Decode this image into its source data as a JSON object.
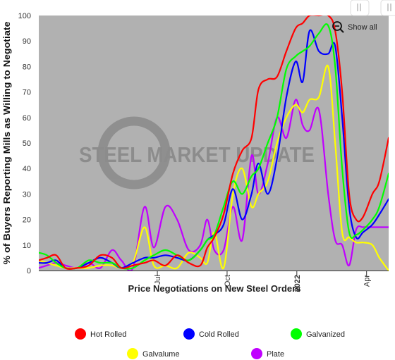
{
  "chart_data": {
    "type": "line",
    "title": "",
    "xlabel": "Price Negotiations on New Steel Orders",
    "ylabel": "% of Buyers Reporting Mills as Willing to Negotiate",
    "ylim": [
      0,
      100
    ],
    "y_ticks": [
      0,
      10,
      20,
      30,
      40,
      50,
      60,
      70,
      80,
      90,
      100
    ],
    "x_ticks": [
      {
        "label": "Jul",
        "pos": 11.25,
        "bold": false,
        "rotated": true
      },
      {
        "label": "Oct",
        "pos": 14.25,
        "bold": false,
        "rotated": true
      },
      {
        "label": "2022",
        "pos": 17.25,
        "bold": true,
        "rotated": true
      },
      {
        "label": "Apr",
        "pos": 20.25,
        "bold": false,
        "rotated": true
      }
    ],
    "x_range": [
      6.15,
      21.2
    ],
    "grid": false,
    "plot_background": "#b1b1b1",
    "legend_position": "bottom",
    "watermark": "STEEL MARKET UPDATE",
    "reset_button_label": "Show all",
    "series": [
      {
        "name": "Hot Rolled",
        "color": "#ff0000",
        "points": [
          [
            6.15,
            4
          ],
          [
            6.5,
            5
          ],
          [
            6.9,
            6
          ],
          [
            7.3,
            1
          ],
          [
            7.8,
            1
          ],
          [
            8.3,
            2
          ],
          [
            8.8,
            6
          ],
          [
            9.3,
            5
          ],
          [
            9.7,
            1
          ],
          [
            10.2,
            2
          ],
          [
            10.7,
            3
          ],
          [
            11.1,
            4
          ],
          [
            11.6,
            2
          ],
          [
            12.1,
            6
          ],
          [
            12.6,
            3
          ],
          [
            13.1,
            2
          ],
          [
            13.4,
            9
          ],
          [
            13.7,
            13
          ],
          [
            14.1,
            22
          ],
          [
            14.5,
            38
          ],
          [
            14.9,
            47
          ],
          [
            15.3,
            52
          ],
          [
            15.6,
            71
          ],
          [
            16.0,
            75
          ],
          [
            16.4,
            76
          ],
          [
            16.8,
            86
          ],
          [
            17.2,
            95
          ],
          [
            17.5,
            97
          ],
          [
            17.8,
            100
          ],
          [
            18.2,
            100
          ],
          [
            18.6,
            100
          ],
          [
            18.9,
            94
          ],
          [
            19.2,
            70
          ],
          [
            19.5,
            30
          ],
          [
            19.8,
            20
          ],
          [
            20.1,
            21
          ],
          [
            20.5,
            30
          ],
          [
            20.8,
            35
          ],
          [
            21.2,
            52
          ]
        ]
      },
      {
        "name": "Cold Rolled",
        "color": "#0000ff",
        "points": [
          [
            6.15,
            3
          ],
          [
            6.5,
            3
          ],
          [
            6.9,
            4
          ],
          [
            7.3,
            1
          ],
          [
            7.8,
            1
          ],
          [
            8.3,
            3
          ],
          [
            8.8,
            5
          ],
          [
            9.3,
            3
          ],
          [
            9.7,
            1
          ],
          [
            10.2,
            3
          ],
          [
            10.7,
            5
          ],
          [
            11.1,
            5
          ],
          [
            11.6,
            6
          ],
          [
            12.1,
            5
          ],
          [
            12.6,
            4
          ],
          [
            13.1,
            8
          ],
          [
            13.4,
            12
          ],
          [
            13.7,
            14
          ],
          [
            14.1,
            18
          ],
          [
            14.5,
            32
          ],
          [
            14.9,
            20
          ],
          [
            15.3,
            30
          ],
          [
            15.6,
            42
          ],
          [
            16.0,
            30
          ],
          [
            16.4,
            44
          ],
          [
            16.8,
            68
          ],
          [
            17.2,
            82
          ],
          [
            17.5,
            74
          ],
          [
            17.8,
            94
          ],
          [
            18.2,
            86
          ],
          [
            18.6,
            85
          ],
          [
            18.9,
            88
          ],
          [
            19.2,
            60
          ],
          [
            19.5,
            25
          ],
          [
            19.8,
            13
          ],
          [
            20.1,
            15
          ],
          [
            20.5,
            18
          ],
          [
            20.8,
            22
          ],
          [
            21.2,
            28
          ]
        ]
      },
      {
        "name": "Galvanized",
        "color": "#00ff00",
        "points": [
          [
            6.15,
            7
          ],
          [
            6.5,
            6
          ],
          [
            6.9,
            3
          ],
          [
            7.3,
            1
          ],
          [
            7.8,
            1
          ],
          [
            8.3,
            4
          ],
          [
            8.8,
            3
          ],
          [
            9.3,
            3
          ],
          [
            9.7,
            1
          ],
          [
            10.2,
            1
          ],
          [
            10.7,
            4
          ],
          [
            11.1,
            6
          ],
          [
            11.6,
            8
          ],
          [
            12.1,
            6
          ],
          [
            12.6,
            4
          ],
          [
            13.1,
            8
          ],
          [
            13.4,
            12
          ],
          [
            13.7,
            14
          ],
          [
            14.1,
            25
          ],
          [
            14.5,
            35
          ],
          [
            14.9,
            30
          ],
          [
            15.3,
            37
          ],
          [
            15.6,
            40
          ],
          [
            16.0,
            50
          ],
          [
            16.4,
            60
          ],
          [
            16.8,
            79
          ],
          [
            17.2,
            84
          ],
          [
            17.5,
            86
          ],
          [
            17.8,
            88
          ],
          [
            18.2,
            93
          ],
          [
            18.6,
            96
          ],
          [
            18.9,
            80
          ],
          [
            19.2,
            40
          ],
          [
            19.5,
            15
          ],
          [
            19.8,
            14
          ],
          [
            20.1,
            16
          ],
          [
            20.5,
            20
          ],
          [
            20.8,
            25
          ],
          [
            21.2,
            38
          ]
        ]
      },
      {
        "name": "Galvalume",
        "color": "#ffff00",
        "points": [
          [
            6.15,
            4
          ],
          [
            6.5,
            3
          ],
          [
            6.9,
            2
          ],
          [
            7.3,
            1
          ],
          [
            7.8,
            1
          ],
          [
            8.3,
            1
          ],
          [
            8.8,
            2
          ],
          [
            9.3,
            2
          ],
          [
            9.7,
            1
          ],
          [
            10.2,
            3
          ],
          [
            10.7,
            17
          ],
          [
            11.1,
            2
          ],
          [
            11.6,
            2
          ],
          [
            12.1,
            1
          ],
          [
            12.6,
            7
          ],
          [
            13.1,
            5
          ],
          [
            13.4,
            3
          ],
          [
            13.7,
            15
          ],
          [
            14.1,
            1
          ],
          [
            14.5,
            30
          ],
          [
            14.9,
            40
          ],
          [
            15.3,
            25
          ],
          [
            15.6,
            30
          ],
          [
            16.0,
            35
          ],
          [
            16.4,
            50
          ],
          [
            16.8,
            60
          ],
          [
            17.2,
            65
          ],
          [
            17.5,
            62
          ],
          [
            17.8,
            67
          ],
          [
            18.2,
            68
          ],
          [
            18.6,
            80
          ],
          [
            18.9,
            50
          ],
          [
            19.2,
            15
          ],
          [
            19.5,
            13
          ],
          [
            19.8,
            11
          ],
          [
            20.1,
            11
          ],
          [
            20.5,
            10
          ],
          [
            20.8,
            5
          ],
          [
            21.2,
            0
          ]
        ]
      },
      {
        "name": "Plate",
        "color": "#c000ff",
        "points": [
          [
            6.15,
            1
          ],
          [
            6.5,
            2
          ],
          [
            6.9,
            3
          ],
          [
            7.3,
            2
          ],
          [
            7.8,
            1
          ],
          [
            8.3,
            3
          ],
          [
            8.8,
            1
          ],
          [
            9.3,
            8
          ],
          [
            9.7,
            4
          ],
          [
            10.2,
            1
          ],
          [
            10.7,
            25
          ],
          [
            11.1,
            9
          ],
          [
            11.6,
            25
          ],
          [
            12.1,
            20
          ],
          [
            12.6,
            8
          ],
          [
            13.1,
            10
          ],
          [
            13.4,
            20
          ],
          [
            13.7,
            8
          ],
          [
            14.1,
            8
          ],
          [
            14.5,
            25
          ],
          [
            14.9,
            12
          ],
          [
            15.3,
            45
          ],
          [
            15.6,
            30
          ],
          [
            16.0,
            42
          ],
          [
            16.4,
            60
          ],
          [
            16.8,
            52
          ],
          [
            17.2,
            67
          ],
          [
            17.5,
            57
          ],
          [
            17.8,
            55
          ],
          [
            18.2,
            63
          ],
          [
            18.6,
            30
          ],
          [
            18.9,
            12
          ],
          [
            19.2,
            10
          ],
          [
            19.5,
            2
          ],
          [
            19.8,
            16
          ],
          [
            20.1,
            17
          ],
          [
            20.5,
            17
          ],
          [
            20.8,
            17
          ],
          [
            21.2,
            17
          ]
        ]
      }
    ]
  }
}
